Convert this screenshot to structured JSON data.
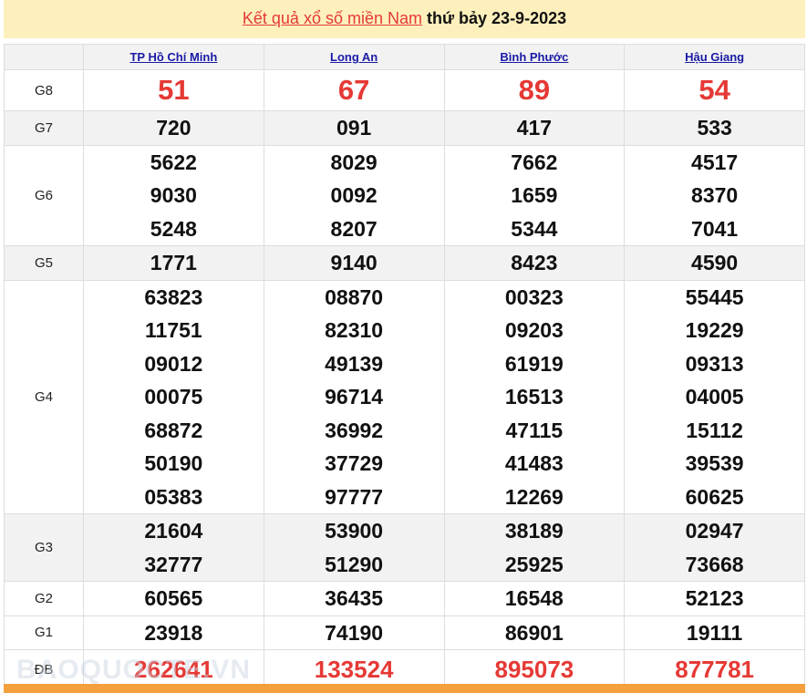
{
  "title": {
    "link": "Kết quả xổ số miền Nam",
    "rest": " thứ bảy 23-9-2023"
  },
  "provinces": [
    "TP Hồ Chí Minh",
    "Long An",
    "Bình Phước",
    "Hậu Giang"
  ],
  "prizes": [
    {
      "label": "G8",
      "style": "big",
      "values": [
        [
          "51"
        ],
        [
          "67"
        ],
        [
          "89"
        ],
        [
          "54"
        ]
      ]
    },
    {
      "label": "G7",
      "style": "num",
      "values": [
        [
          "720"
        ],
        [
          "091"
        ],
        [
          "417"
        ],
        [
          "533"
        ]
      ]
    },
    {
      "label": "G6",
      "style": "num",
      "values": [
        [
          "5622",
          "9030",
          "5248"
        ],
        [
          "8029",
          "0092",
          "8207"
        ],
        [
          "7662",
          "1659",
          "5344"
        ],
        [
          "4517",
          "8370",
          "7041"
        ]
      ]
    },
    {
      "label": "G5",
      "style": "num",
      "values": [
        [
          "1771"
        ],
        [
          "9140"
        ],
        [
          "8423"
        ],
        [
          "4590"
        ]
      ]
    },
    {
      "label": "G4",
      "style": "num",
      "values": [
        [
          "63823",
          "11751",
          "09012",
          "00075",
          "68872",
          "50190",
          "05383"
        ],
        [
          "08870",
          "82310",
          "49139",
          "96714",
          "36992",
          "37729",
          "97777"
        ],
        [
          "00323",
          "09203",
          "61919",
          "16513",
          "47115",
          "41483",
          "12269"
        ],
        [
          "55445",
          "19229",
          "09313",
          "04005",
          "15112",
          "39539",
          "60625"
        ]
      ]
    },
    {
      "label": "G3",
      "style": "num",
      "values": [
        [
          "21604",
          "32777"
        ],
        [
          "53900",
          "51290"
        ],
        [
          "38189",
          "25925"
        ],
        [
          "02947",
          "73668"
        ]
      ]
    },
    {
      "label": "G2",
      "style": "num",
      "values": [
        [
          "60565"
        ],
        [
          "36435"
        ],
        [
          "16548"
        ],
        [
          "52123"
        ]
      ]
    },
    {
      "label": "G1",
      "style": "num",
      "values": [
        [
          "23918"
        ],
        [
          "74190"
        ],
        [
          "86901"
        ],
        [
          "19111"
        ]
      ]
    },
    {
      "label": "ĐB",
      "style": "db",
      "values": [
        [
          "262641"
        ],
        [
          "133524"
        ],
        [
          "895073"
        ],
        [
          "877781"
        ]
      ]
    }
  ],
  "watermark": "BAOQUOCTE.VN"
}
